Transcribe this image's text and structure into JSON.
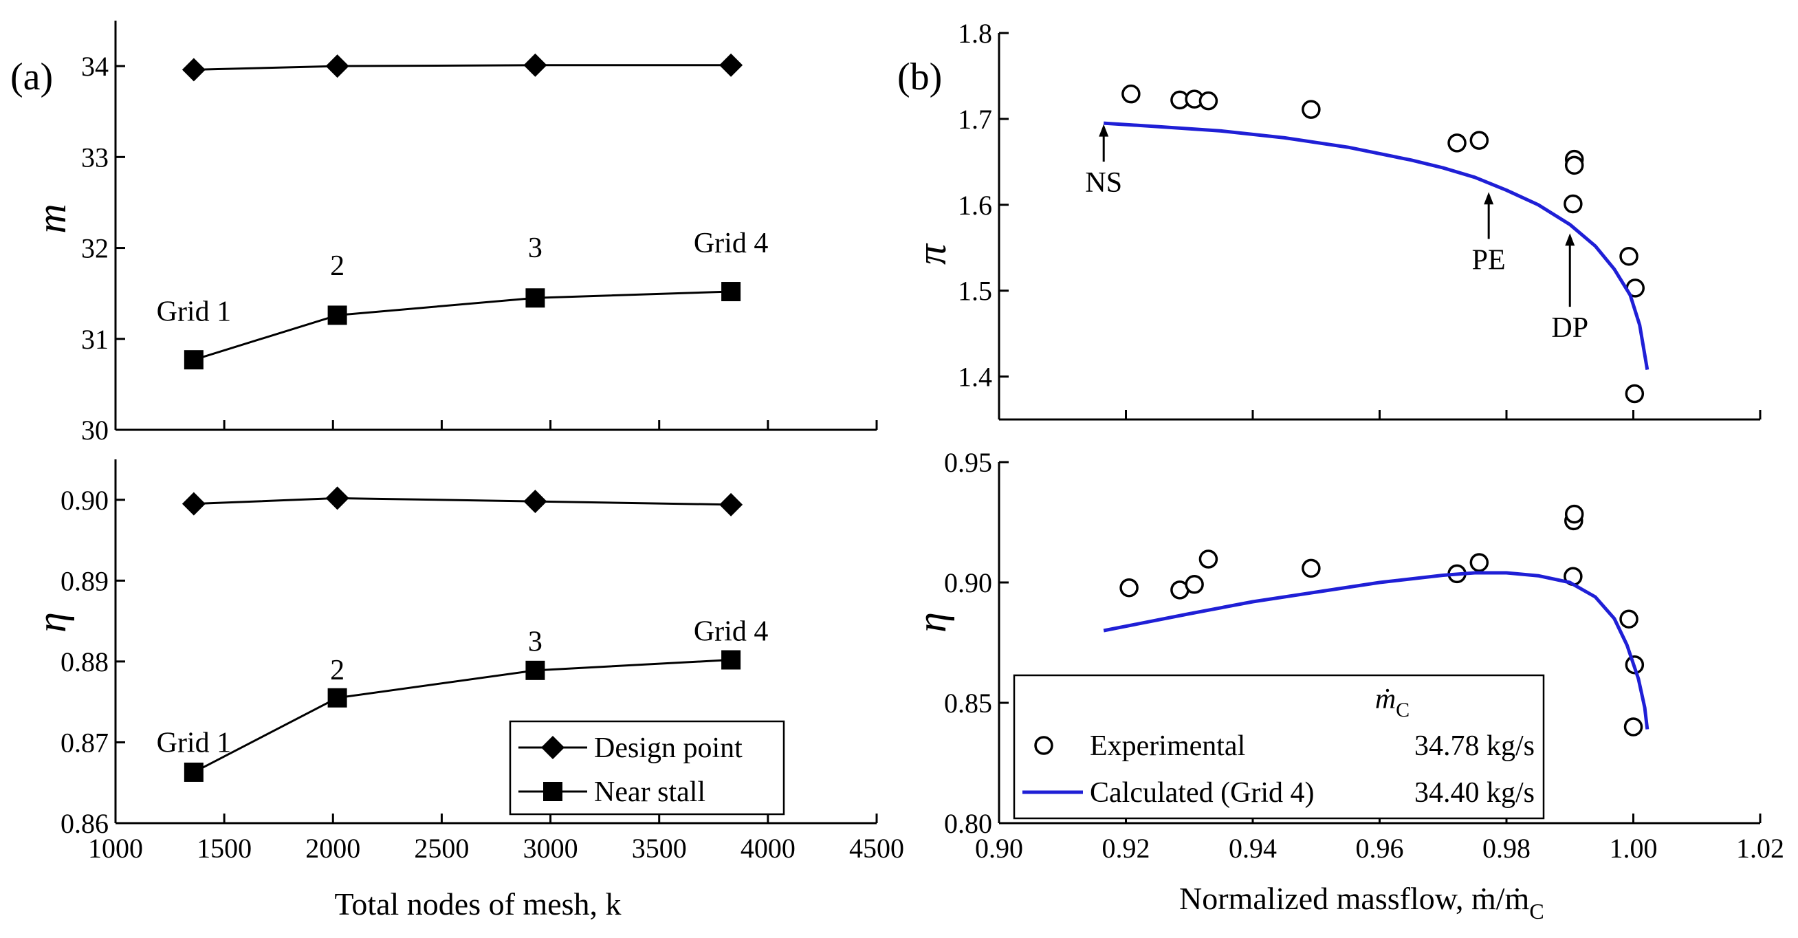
{
  "chart_data": [
    {
      "id": "a_top",
      "panel_label": "(a)",
      "type": "line",
      "ylabel": "m",
      "ylim": [
        30,
        34.5
      ],
      "yticks": [
        30,
        31,
        32,
        33,
        34
      ],
      "ytick_labels": [
        "30",
        "31",
        "32",
        "33",
        "34"
      ],
      "xlim": [
        1000,
        4500
      ],
      "series": [
        {
          "name": "Design point",
          "marker": "diamond",
          "x": [
            1360,
            2020,
            2930,
            3830
          ],
          "y": [
            33.96,
            34.0,
            34.01,
            34.01
          ]
        },
        {
          "name": "Near stall",
          "marker": "square",
          "x": [
            1360,
            2020,
            2930,
            3830
          ],
          "y": [
            30.77,
            31.26,
            31.45,
            31.52
          ]
        }
      ],
      "annotations": [
        {
          "text": "Grid 1",
          "x": 1360,
          "y": 31.2
        },
        {
          "text": "2",
          "x": 2020,
          "y": 31.7
        },
        {
          "text": "3",
          "x": 2930,
          "y": 31.9
        },
        {
          "text": "Grid 4",
          "x": 3830,
          "y": 31.95
        }
      ]
    },
    {
      "id": "a_bottom",
      "type": "line",
      "xlabel": "Total nodes of mesh, k",
      "ylabel": "η",
      "xlim": [
        1000,
        4500
      ],
      "xticks": [
        1000,
        1500,
        2000,
        2500,
        3000,
        3500,
        4000,
        4500
      ],
      "xtick_labels": [
        "1000",
        "1500",
        "2000",
        "2500",
        "3000",
        "3500",
        "4000",
        "4500"
      ],
      "ylim": [
        0.86,
        0.905
      ],
      "yticks": [
        0.86,
        0.87,
        0.88,
        0.89,
        0.9
      ],
      "ytick_labels": [
        "0.86",
        "0.87",
        "0.88",
        "0.89",
        "0.90"
      ],
      "series": [
        {
          "name": "Design point",
          "marker": "diamond",
          "x": [
            1360,
            2020,
            2930,
            3830
          ],
          "y": [
            0.8995,
            0.9002,
            0.8998,
            0.8994
          ]
        },
        {
          "name": "Near stall",
          "marker": "square",
          "x": [
            1360,
            2020,
            2930,
            3830
          ],
          "y": [
            0.8663,
            0.8755,
            0.8789,
            0.8802
          ]
        }
      ],
      "annotations": [
        {
          "text": "Grid 1",
          "x": 1360,
          "y": 0.8688
        },
        {
          "text": "2",
          "x": 2020,
          "y": 0.8778
        },
        {
          "text": "3",
          "x": 2930,
          "y": 0.8813
        },
        {
          "text": "Grid 4",
          "x": 3830,
          "y": 0.8826
        }
      ],
      "legend": {
        "placement": "lower-right",
        "entries": [
          "Design point",
          "Near stall"
        ]
      }
    },
    {
      "id": "b_top",
      "panel_label": "(b)",
      "type": "line",
      "ylabel": "π",
      "ylim": [
        1.35,
        1.8
      ],
      "yticks": [
        1.4,
        1.5,
        1.6,
        1.7,
        1.8
      ],
      "ytick_labels": [
        "1.4",
        "1.5",
        "1.6",
        "1.7",
        "1.8"
      ],
      "xlim": [
        0.9,
        1.02
      ],
      "series": [
        {
          "name": "Experimental",
          "marker": "open-circle",
          "x": [
            0.9208,
            0.9285,
            0.9308,
            0.933,
            0.9492,
            0.9722,
            0.9757,
            0.9907,
            0.9907,
            0.9905,
            0.9993,
            1.0003,
            1.0002
          ],
          "y": [
            1.729,
            1.722,
            1.723,
            1.721,
            1.711,
            1.672,
            1.675,
            1.653,
            1.646,
            1.601,
            1.54,
            1.503,
            1.38
          ]
        },
        {
          "name": "Calculated (Grid 4)",
          "style": "line",
          "color": "#1f1fd6",
          "x": [
            0.9165,
            0.925,
            0.935,
            0.945,
            0.955,
            0.965,
            0.97,
            0.975,
            0.98,
            0.985,
            0.99,
            0.994,
            0.997,
            0.9995,
            1.001,
            1.0022
          ],
          "y": [
            1.695,
            1.691,
            1.686,
            1.678,
            1.667,
            1.652,
            1.643,
            1.632,
            1.617,
            1.6,
            1.577,
            1.552,
            1.525,
            1.495,
            1.46,
            1.408
          ]
        }
      ],
      "annotations": [
        {
          "text": "NS",
          "x": 0.9165,
          "y": 1.615,
          "arrow_to": [
            0.9165,
            1.697
          ]
        },
        {
          "text": "PE",
          "x": 0.9772,
          "y": 1.525,
          "arrow_to": [
            0.9772,
            1.618
          ]
        },
        {
          "text": "DP",
          "x": 0.99,
          "y": 1.446,
          "arrow_to": [
            0.99,
            1.57
          ]
        }
      ]
    },
    {
      "id": "b_bottom",
      "type": "line",
      "xlabel": "Normalized massflow, ṁ/ṁ",
      "xlabel_sub": "C",
      "ylabel": "η",
      "xlim": [
        0.9,
        1.02
      ],
      "xticks": [
        0.9,
        0.92,
        0.94,
        0.96,
        0.98,
        1.0,
        1.02
      ],
      "xtick_labels": [
        "0.90",
        "0.92",
        "0.94",
        "0.96",
        "0.98",
        "1.00",
        "1.02"
      ],
      "ylim": [
        0.8,
        0.95
      ],
      "yticks": [
        0.8,
        0.85,
        0.9,
        0.95
      ],
      "ytick_labels": [
        "0.80",
        "0.85",
        "0.90",
        "0.95"
      ],
      "series": [
        {
          "name": "Experimental",
          "marker": "open-circle",
          "x": [
            0.9205,
            0.9285,
            0.9308,
            0.933,
            0.9492,
            0.9722,
            0.9757,
            0.9906,
            0.9907,
            0.9905,
            0.9993,
            1.0002,
            1.0
          ],
          "y": [
            0.8978,
            0.8969,
            0.8992,
            0.9097,
            0.9059,
            0.9036,
            0.9083,
            0.9256,
            0.9284,
            0.9025,
            0.8848,
            0.8658,
            0.84
          ]
        },
        {
          "name": "Calculated (Grid 4)",
          "style": "line",
          "color": "#1f1fd6",
          "x": [
            0.9165,
            0.93,
            0.94,
            0.95,
            0.96,
            0.97,
            0.975,
            0.98,
            0.985,
            0.99,
            0.994,
            0.997,
            0.999,
            1.0008,
            1.0018,
            1.0022
          ],
          "y": [
            0.88,
            0.887,
            0.892,
            0.896,
            0.9,
            0.903,
            0.904,
            0.904,
            0.9028,
            0.9,
            0.894,
            0.885,
            0.874,
            0.86,
            0.848,
            0.839
          ]
        }
      ],
      "legend": {
        "placement": "lower-left",
        "header": "ṁ",
        "header_sub": "C",
        "entries": [
          {
            "name": "Experimental",
            "value": "34.78 kg/s"
          },
          {
            "name": "Calculated (Grid 4)",
            "value": "34.40 kg/s"
          }
        ]
      }
    }
  ]
}
